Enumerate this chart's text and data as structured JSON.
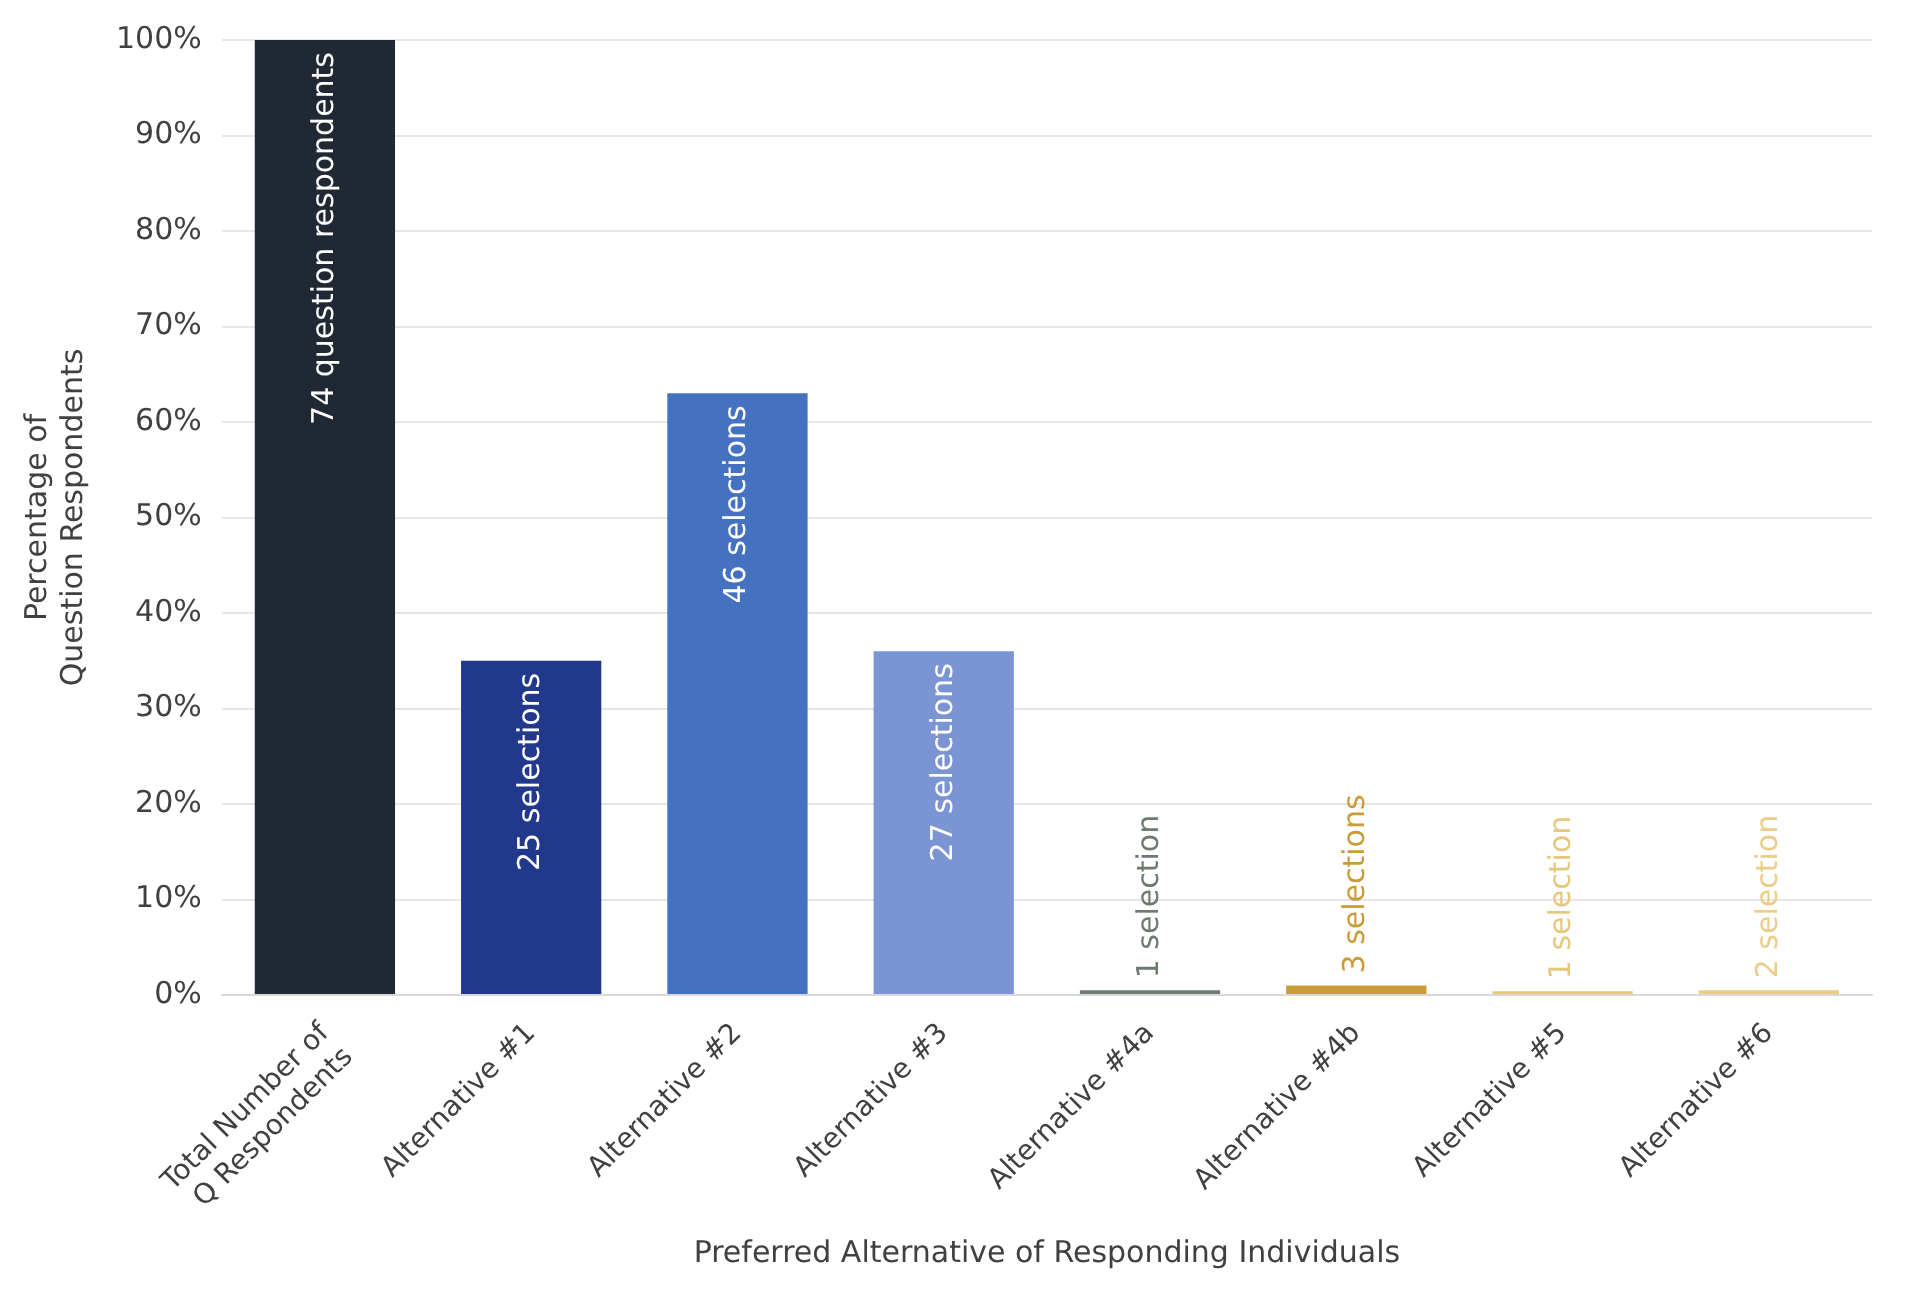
{
  "chart_data": {
    "type": "bar",
    "xlabel": "Preferred Alternative of Responding Individuals",
    "ylabel": "Percentage of\nQuestion Respondents",
    "categories": [
      "Total Number of\nQ Respondents",
      "Alternative #1",
      "Alternative #2",
      "Alternative #3",
      "Alternative #4a",
      "Alternative #4b",
      "Alternative #5",
      "Alternative #6"
    ],
    "values": [
      100,
      35,
      63,
      36,
      0.5,
      1,
      0.4,
      0.5
    ],
    "colors": [
      "#1f2833",
      "#22388a",
      "#4571c1",
      "#7b94d4",
      "#6f7b70",
      "#c99c38",
      "#e6c77e",
      "#ebcd88"
    ],
    "annotations": [
      {
        "text": "74 question respondents",
        "x": "Total Number of\nQ Respondents",
        "y": 100
      },
      {
        "text": "25 selections",
        "x": "Alternative #1",
        "y": 35
      },
      {
        "text": "46 selections",
        "x": "Alternative #2",
        "y": 63
      },
      {
        "text": "27 selections",
        "x": "Alternative #3",
        "y": 36
      },
      {
        "text": "1 selection",
        "x": "Alternative #4a",
        "y": 0.5
      },
      {
        "text": "3 selections",
        "x": "Alternative #4b",
        "y": 1
      },
      {
        "text": "1 selection",
        "x": "Alternative #5",
        "y": 0.4
      },
      {
        "text": "2 selection",
        "x": "Alternative #6",
        "y": 0.5
      }
    ],
    "ylim": [
      0,
      100
    ],
    "yticks": [
      {
        "value": 0,
        "label": "0%"
      },
      {
        "value": 10,
        "label": "10%"
      },
      {
        "value": 20,
        "label": "20%"
      },
      {
        "value": 30,
        "label": "30%"
      },
      {
        "value": 40,
        "label": "40%"
      },
      {
        "value": 50,
        "label": "50%"
      },
      {
        "value": 60,
        "label": "60%"
      },
      {
        "value": 70,
        "label": "70%"
      },
      {
        "value": 80,
        "label": "80%"
      },
      {
        "value": 90,
        "label": "90%"
      },
      {
        "value": 100,
        "label": "100%"
      }
    ],
    "grid": "y",
    "legend": false
  }
}
